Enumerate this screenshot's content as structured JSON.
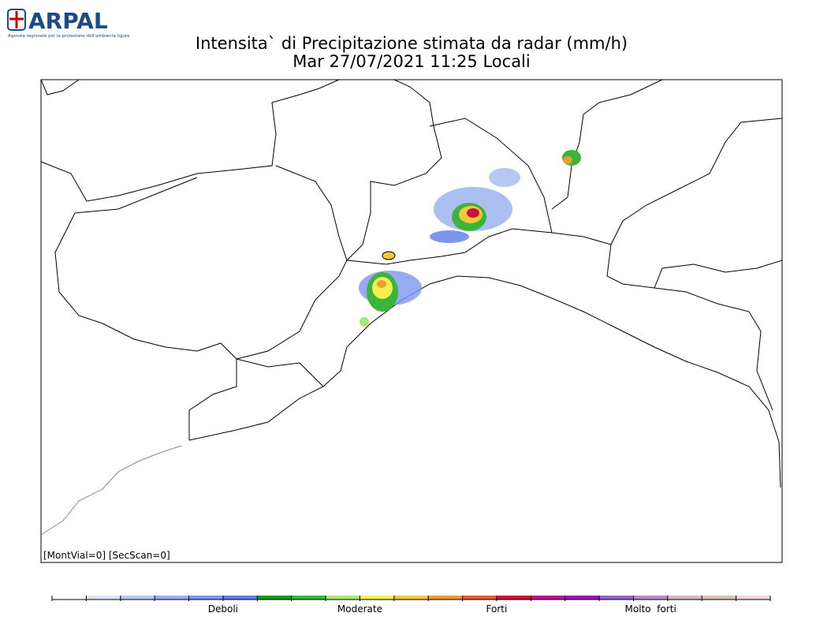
{
  "header": {
    "logo": "ARPAL",
    "tagline": "Agenzia regionale per la protezione dell'ambiente ligure"
  },
  "title": {
    "line1": "Intensita` di Precipitazione stimata da radar (mm/h)",
    "line2": "Mar 27/07/2021 11:25 Locali"
  },
  "map": {
    "note": "[MontVial=0] [SecScan=0]"
  },
  "legend": {
    "colors": [
      "#ffffff",
      "#dce6f8",
      "#b4c8f0",
      "#96aff0",
      "#7d96f0",
      "#6478e6",
      "#1e961e",
      "#3cb43c",
      "#aae678",
      "#f0f050",
      "#f0c83c",
      "#e6a032",
      "#e65a3c",
      "#c8143c",
      "#b4148c",
      "#9614b4",
      "#9664c8",
      "#b48cc8",
      "#dcb4c8",
      "#d2c3b4",
      "#ebd7dc"
    ],
    "labels": [
      "Deboli",
      "Moderate",
      "Forti",
      "Molto  forti"
    ]
  }
}
